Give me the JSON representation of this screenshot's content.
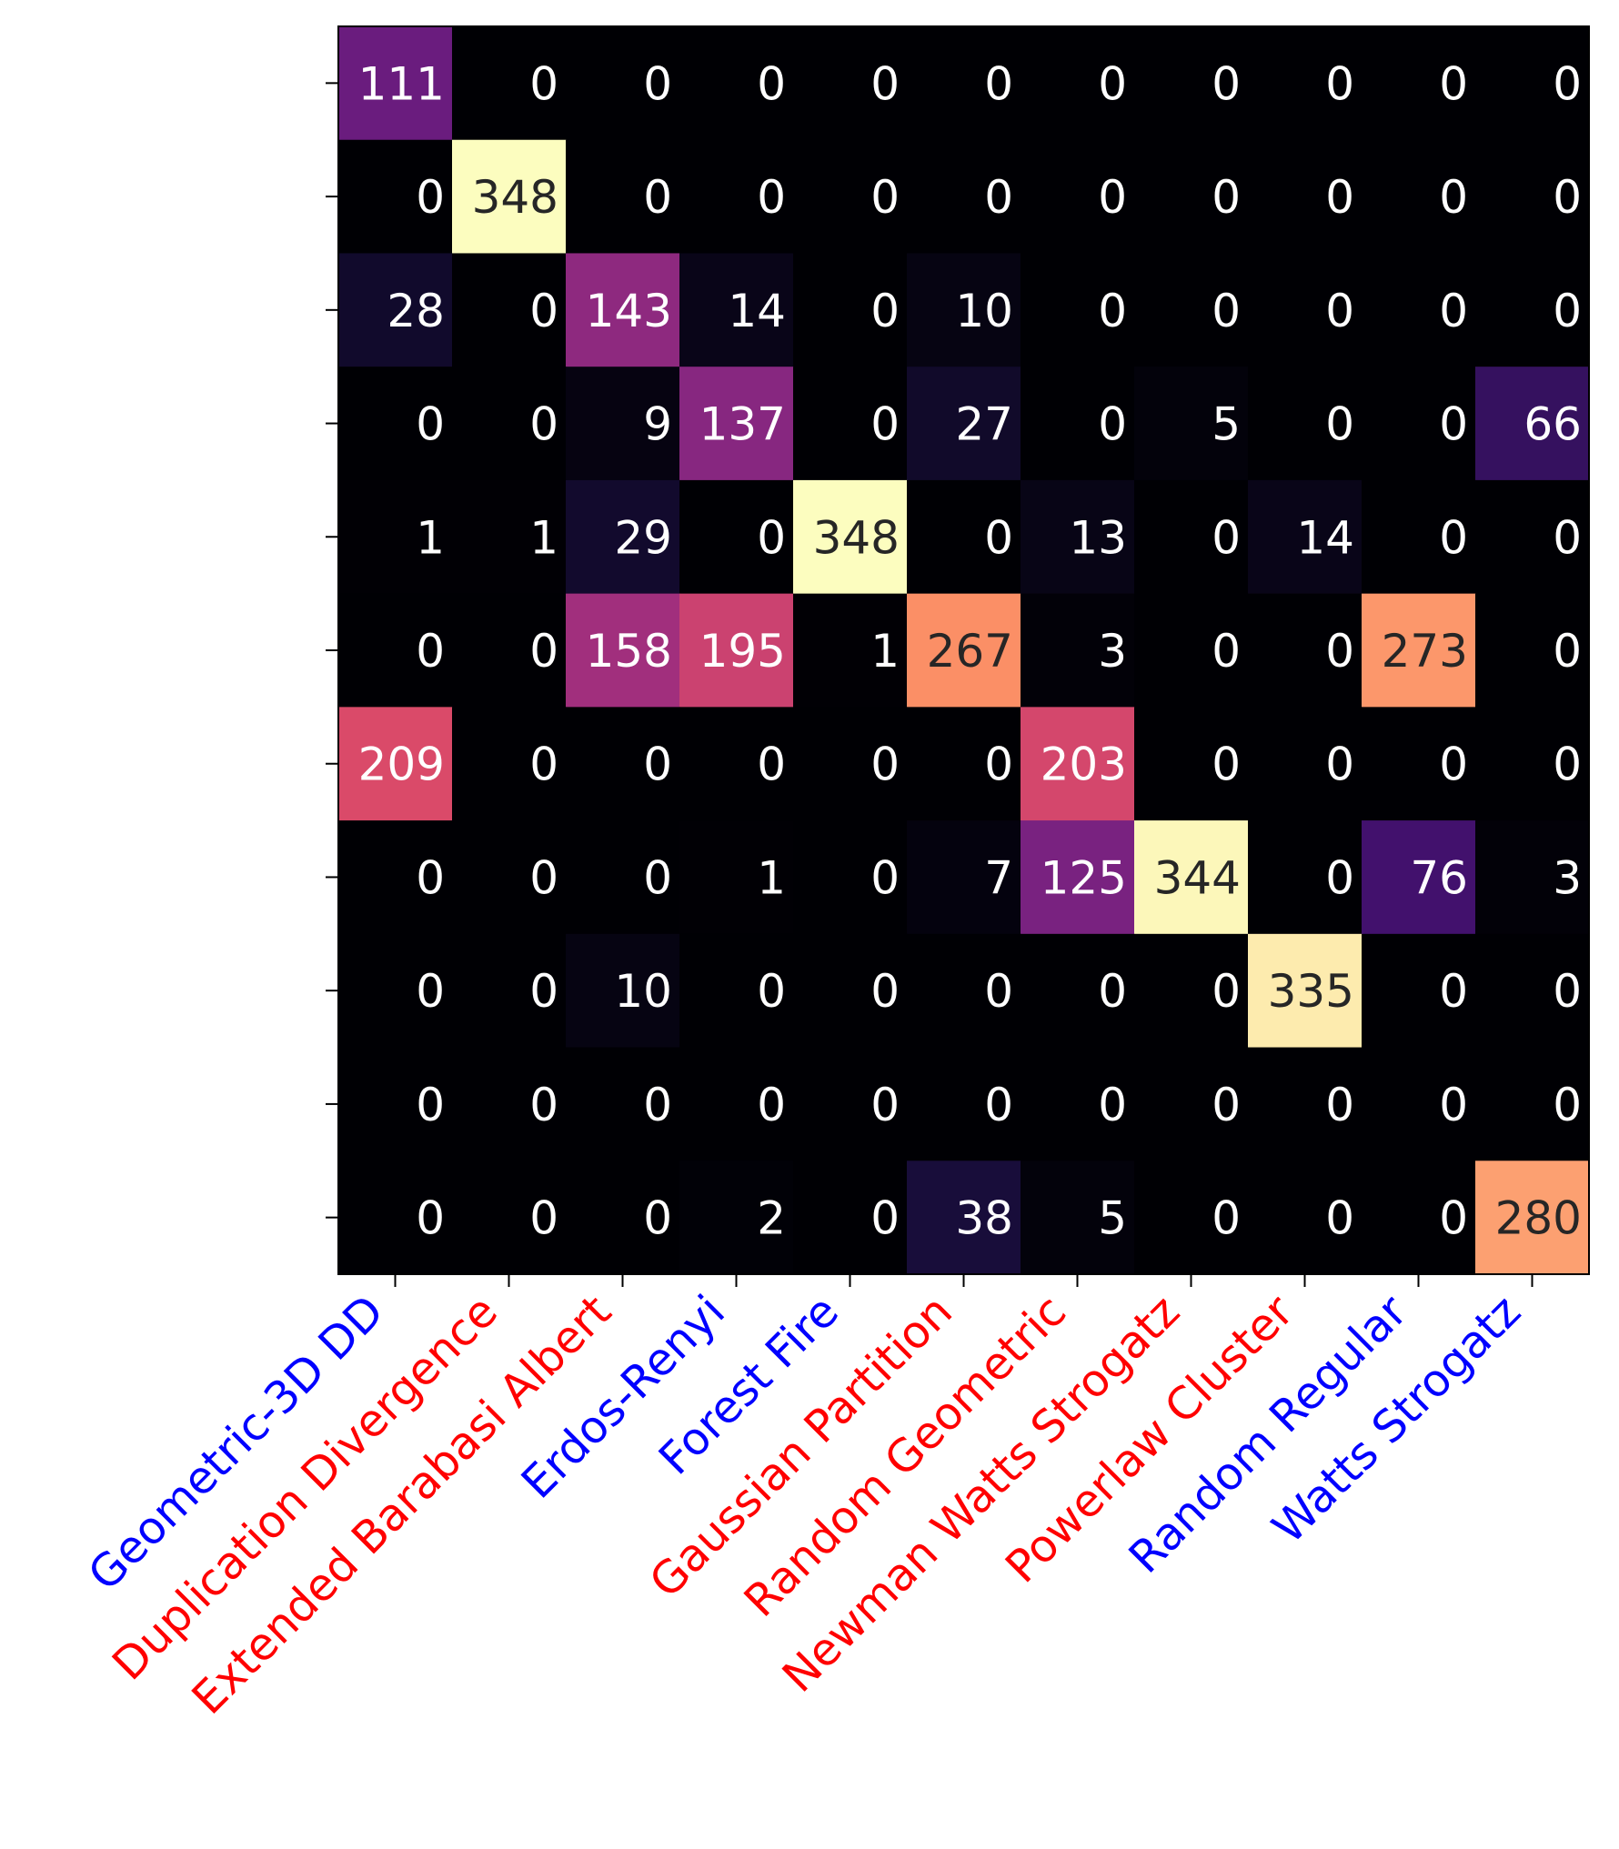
{
  "chart_data": {
    "type": "heatmap",
    "title": "",
    "xlabel": "",
    "ylabel": "",
    "colormap": "magma",
    "color_range": [
      0,
      348
    ],
    "x_categories": [
      "Geometric-3D DD",
      "Duplication Divergence",
      "Extended Barabasi Albert",
      "Erdos-Renyi",
      "Forest Fire",
      "Gaussian Partition",
      "Random Geometric",
      "Newman Watts Strogatz",
      "Powerlaw Cluster",
      "Random Regular",
      "Watts Strogatz"
    ],
    "x_label_colors": [
      "#0000ff",
      "#ff0000",
      "#ff0000",
      "#0000ff",
      "#0000ff",
      "#ff0000",
      "#ff0000",
      "#ff0000",
      "#ff0000",
      "#0000ff",
      "#0000ff"
    ],
    "y_categories": [],
    "values": [
      [
        111,
        0,
        0,
        0,
        0,
        0,
        0,
        0,
        0,
        0,
        0
      ],
      [
        0,
        348,
        0,
        0,
        0,
        0,
        0,
        0,
        0,
        0,
        0
      ],
      [
        28,
        0,
        143,
        14,
        0,
        10,
        0,
        0,
        0,
        0,
        0
      ],
      [
        0,
        0,
        9,
        137,
        0,
        27,
        0,
        5,
        0,
        0,
        66
      ],
      [
        1,
        1,
        29,
        0,
        348,
        0,
        13,
        0,
        14,
        0,
        0
      ],
      [
        0,
        0,
        158,
        195,
        1,
        267,
        3,
        0,
        0,
        273,
        0
      ],
      [
        209,
        0,
        0,
        0,
        0,
        0,
        203,
        0,
        0,
        0,
        0
      ],
      [
        0,
        0,
        0,
        1,
        0,
        7,
        125,
        344,
        0,
        76,
        3
      ],
      [
        0,
        0,
        10,
        0,
        0,
        0,
        0,
        0,
        335,
        0,
        0
      ],
      [
        0,
        0,
        0,
        0,
        0,
        0,
        0,
        0,
        0,
        0,
        0
      ],
      [
        0,
        0,
        0,
        2,
        0,
        38,
        5,
        0,
        0,
        0,
        280
      ]
    ],
    "grid": false,
    "legend": "none"
  }
}
